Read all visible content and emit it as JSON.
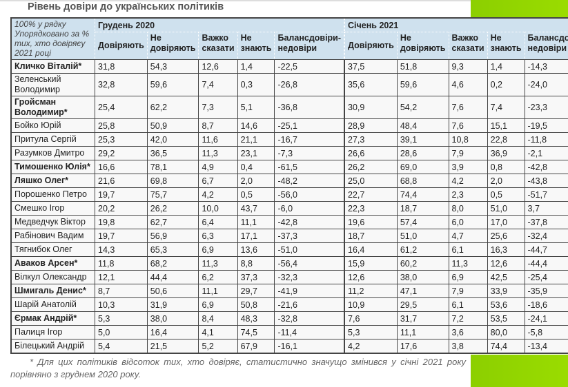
{
  "title": "Рівень довіри до українських політиків",
  "corner_note": "100% у рядку Упорядковано за % тих, хто довіряєу 2021 році",
  "periods": [
    "Грудень 2020",
    "Січень 2021"
  ],
  "columns": [
    "Довіряють",
    "Не довіряють",
    "Важко сказати",
    "Не знають",
    "Балансдовіри-недовіри"
  ],
  "rows": [
    {
      "name": "Кличко Віталій*",
      "bold": true,
      "dec": [
        "31,8",
        "54,3",
        "12,6",
        "1,4",
        "-22,5"
      ],
      "jan": [
        "37,5",
        "51,8",
        "9,3",
        "1,4",
        "-14,3"
      ]
    },
    {
      "name": "Зеленський Володимир",
      "bold": false,
      "dec": [
        "32,8",
        "59,6",
        "7,4",
        "0,3",
        "-26,8"
      ],
      "jan": [
        "35,6",
        "59,6",
        "4,6",
        "0,2",
        "-24,0"
      ]
    },
    {
      "name": "Гройсман Володимир*",
      "bold": true,
      "dec": [
        "25,4",
        "62,2",
        "7,3",
        "5,1",
        "-36,8"
      ],
      "jan": [
        "30,9",
        "54,2",
        "7,6",
        "7,4",
        "-23,3"
      ]
    },
    {
      "name": "Бойко Юрій",
      "bold": false,
      "dec": [
        "25,8",
        "50,9",
        "8,7",
        "14,6",
        "-25,1"
      ],
      "jan": [
        "28,9",
        "48,4",
        "7,6",
        "15,1",
        "-19,5"
      ]
    },
    {
      "name": "Притула Сергій",
      "bold": false,
      "dec": [
        "25,3",
        "42,0",
        "11,6",
        "21,1",
        "-16,7"
      ],
      "jan": [
        "27,3",
        "39,1",
        "10,8",
        "22,8",
        "-11,8"
      ]
    },
    {
      "name": "Разумков Дмитро",
      "bold": false,
      "dec": [
        "29,2",
        "36,5",
        "11,3",
        "23,1",
        "-7,3"
      ],
      "jan": [
        "26,6",
        "28,6",
        "7,9",
        "36,9",
        "-2,1"
      ]
    },
    {
      "name": "Тимошенко Юлія*",
      "bold": true,
      "dec": [
        "16,6",
        "78,1",
        "4,9",
        "0,4",
        "-61,5"
      ],
      "jan": [
        "26,2",
        "69,0",
        "3,9",
        "0,8",
        "-42,8"
      ]
    },
    {
      "name": "Ляшко Олег*",
      "bold": true,
      "dec": [
        "21,6",
        "69,8",
        "6,7",
        "2,0",
        "-48,2"
      ],
      "jan": [
        "25,0",
        "68,8",
        "4,2",
        "2,0",
        "-43,8"
      ]
    },
    {
      "name": "Порошенко Петро",
      "bold": false,
      "dec": [
        "19,7",
        "75,7",
        "4,2",
        "0,5",
        "-56,0"
      ],
      "jan": [
        "22,7",
        "74,4",
        "2,3",
        "0,5",
        "-51,7"
      ]
    },
    {
      "name": "Смешко Ігор",
      "bold": false,
      "dec": [
        "20,2",
        "26,2",
        "10,0",
        "43,7",
        "-6,0"
      ],
      "jan": [
        "22,3",
        "18,7",
        "8,0",
        "51,0",
        "3,7"
      ]
    },
    {
      "name": "Медведчук Віктор",
      "bold": false,
      "dec": [
        "19,8",
        "62,7",
        "6,4",
        "11,1",
        "-42,8"
      ],
      "jan": [
        "19,6",
        "57,4",
        "6,0",
        "17,0",
        "-37,8"
      ]
    },
    {
      "name": "Рабінович Вадим",
      "bold": false,
      "dec": [
        "19,7",
        "56,9",
        "6,3",
        "17,1",
        "-37,3"
      ],
      "jan": [
        "18,7",
        "51,0",
        "4,7",
        "25,6",
        "-32,4"
      ]
    },
    {
      "name": "Тягнибок Олег",
      "bold": false,
      "dec": [
        "14,3",
        "65,3",
        "6,9",
        "13,6",
        "-51,0"
      ],
      "jan": [
        "16,4",
        "61,2",
        "6,1",
        "16,3",
        "-44,7"
      ]
    },
    {
      "name": "Аваков Арсен*",
      "bold": true,
      "dec": [
        "11,8",
        "68,2",
        "11,3",
        "8,8",
        "-56,4"
      ],
      "jan": [
        "15,9",
        "60,2",
        "11,3",
        "12,6",
        "-44,4"
      ]
    },
    {
      "name": "Вілкул Олександр",
      "bold": false,
      "dec": [
        "12,1",
        "44,4",
        "6,2",
        "37,3",
        "-32,3"
      ],
      "jan": [
        "12,6",
        "38,0",
        "6,9",
        "42,5",
        "-25,4"
      ]
    },
    {
      "name": "Шмигаль Денис*",
      "bold": true,
      "dec": [
        "8,7",
        "50,6",
        "11,1",
        "29,7",
        "-41,9"
      ],
      "jan": [
        "11,2",
        "47,1",
        "7,9",
        "33,9",
        "-35,9"
      ]
    },
    {
      "name": "Шарій Анатолій",
      "bold": false,
      "dec": [
        "10,3",
        "31,9",
        "6,9",
        "50,8",
        "-21,6"
      ],
      "jan": [
        "10,9",
        "29,5",
        "6,1",
        "53,6",
        "-18,6"
      ]
    },
    {
      "name": "Єрмак Андрій*",
      "bold": true,
      "dec": [
        "5,3",
        "38,0",
        "8,4",
        "48,3",
        "-32,8"
      ],
      "jan": [
        "7,6",
        "31,7",
        "7,2",
        "53,5",
        "-24,1"
      ]
    },
    {
      "name": "Палиця Ігор",
      "bold": false,
      "dec": [
        "5,0",
        "16,4",
        "4,1",
        "74,5",
        "-11,4"
      ],
      "jan": [
        "5,3",
        "11,1",
        "3,6",
        "80,0",
        "-5,8"
      ]
    },
    {
      "name": "Білецький Андрій",
      "bold": false,
      "dec": [
        "5,4",
        "21,5",
        "5,2",
        "67,9",
        "-16,1"
      ],
      "jan": [
        "4,2",
        "17,6",
        "3,8",
        "74,4",
        "-13,4"
      ]
    }
  ],
  "footnote": "* Для цих політиків відсоток тих, хто довіряє, статистично значущо змінився у січні 2021 року порівняно з груднем 2020 року.",
  "colors": {
    "header_bg": "#cfe1ee",
    "accent_green": "#8ccf00"
  }
}
